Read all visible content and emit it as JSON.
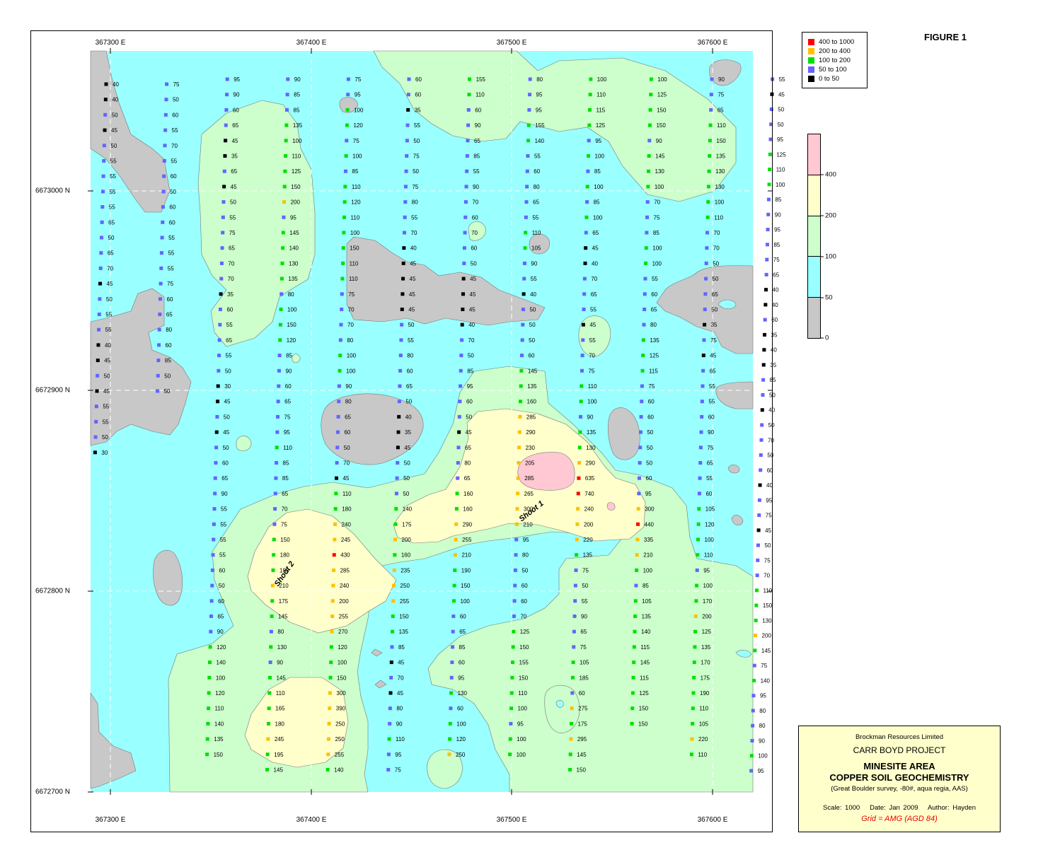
{
  "figure_label": "FIGURE 1",
  "axes": {
    "x_labels": [
      {
        "value": 367300,
        "text": "367300 E"
      },
      {
        "value": 367400,
        "text": "367400 E"
      },
      {
        "value": 367500,
        "text": "367500 E"
      },
      {
        "value": 367600,
        "text": "367600 E"
      }
    ],
    "y_labels": [
      {
        "value": 6673000,
        "text": "6673000 N"
      },
      {
        "value": 6672900,
        "text": "6672900 N"
      },
      {
        "value": 6672800,
        "text": "6672800 N"
      },
      {
        "value": 6672700,
        "text": "6672700 N"
      }
    ]
  },
  "legend": {
    "entries": [
      {
        "label": "400  to  1000",
        "color": "#ff0000"
      },
      {
        "label": "200  to  400",
        "color": "#ffc000"
      },
      {
        "label": "100  to  200",
        "color": "#00e000"
      },
      {
        "label": "50  to  100",
        "color": "#6464ff"
      },
      {
        "label": "0  to  50",
        "color": "#000000"
      }
    ]
  },
  "color_scale": {
    "bands": [
      {
        "from": 400,
        "color": "#ffc8d2"
      },
      {
        "from": 200,
        "color": "#ffffcc"
      },
      {
        "from": 100,
        "color": "#ccffcc"
      },
      {
        "from": 50,
        "color": "#99ffff"
      },
      {
        "from": 0,
        "color": "#c8c8c8"
      }
    ],
    "ticks": [
      "400",
      "200",
      "100",
      "50",
      "0"
    ]
  },
  "title_block": {
    "company": "Brockman Resources Limited",
    "project": "CARR BOYD PROJECT",
    "area": "MINESITE AREA",
    "subject": "COPPER SOIL GEOCHEMISTRY",
    "survey": "(Great Boulder survey, -80#, aqua regia, AAS)",
    "scale": "Scale: 1000",
    "date": "Date: Jan 2009",
    "author": "Author: Hayden",
    "grid": "Grid = AMG (AGD 84)"
  },
  "map_labels": {
    "shoot1": "Shoot 1",
    "shoot2": "Shoot 2"
  },
  "sample_lines": [
    [
      40,
      40,
      50,
      45,
      50,
      55,
      55,
      55,
      55,
      65,
      50,
      65,
      70,
      45,
      50,
      55,
      55,
      40,
      45,
      50,
      45,
      55,
      55,
      50,
      30
    ],
    [
      75,
      50,
      60,
      55,
      70,
      55,
      60,
      50,
      60,
      60,
      55,
      55,
      55,
      75,
      60,
      65,
      80,
      60,
      85,
      50,
      50
    ],
    [
      95,
      90,
      60,
      65,
      45,
      35,
      65,
      45,
      50,
      55,
      75,
      65,
      70,
      70,
      35,
      60,
      55,
      65,
      55,
      50,
      30,
      45,
      50,
      45,
      50,
      60,
      65,
      90,
      55,
      55,
      55,
      55,
      60,
      50,
      60,
      65,
      90,
      120,
      140,
      100,
      120,
      110,
      140,
      135,
      150
    ],
    [
      90,
      85,
      85,
      135,
      100,
      110,
      125,
      150,
      200,
      95,
      145,
      140,
      130,
      135,
      80,
      100,
      150,
      120,
      85,
      90,
      60,
      65,
      75,
      95,
      110,
      85,
      85,
      65,
      70,
      75,
      150,
      180,
      185,
      210,
      175,
      145,
      80,
      130,
      90,
      145,
      110,
      165,
      180,
      245,
      195,
      145
    ],
    [
      75,
      95,
      100,
      120,
      75,
      100,
      85,
      110,
      120,
      110,
      100,
      150,
      110,
      110,
      75,
      70,
      70,
      80,
      100,
      100,
      90,
      80,
      65,
      60,
      50,
      70,
      45,
      110,
      180,
      240,
      245,
      430,
      285,
      240,
      200,
      255,
      270,
      120,
      100,
      150,
      300,
      390,
      250,
      250,
      255,
      140
    ],
    [
      60,
      60,
      35,
      55,
      50,
      75,
      50,
      75,
      80,
      55,
      70,
      40,
      45,
      45,
      45,
      45,
      50,
      55,
      80,
      60,
      65,
      50,
      40,
      35,
      45,
      50,
      50,
      50,
      140,
      175,
      200,
      160,
      235,
      250,
      255,
      150,
      135,
      85,
      45,
      70,
      45,
      80,
      90,
      110,
      95,
      75
    ],
    [
      155,
      110,
      60,
      90,
      65,
      85,
      55,
      90,
      70,
      60,
      70,
      60,
      50,
      45,
      45,
      45,
      40,
      70,
      50,
      85,
      95,
      60,
      50,
      45,
      65,
      80,
      65,
      160,
      160,
      290,
      255,
      210,
      190,
      150,
      100,
      60,
      65,
      85,
      60,
      95,
      130,
      60,
      100,
      120,
      250
    ],
    [
      80,
      95,
      95,
      155,
      140,
      55,
      60,
      80,
      65,
      55,
      110,
      105,
      90,
      55,
      40,
      50,
      50,
      50,
      60,
      145,
      135,
      160,
      285,
      290,
      230,
      205,
      285,
      265,
      300,
      210,
      95,
      80,
      50,
      60,
      60,
      70,
      125,
      150,
      155,
      150,
      110,
      100,
      95,
      100,
      100
    ],
    [
      100,
      110,
      115,
      125,
      95,
      100,
      85,
      100,
      85,
      100,
      65,
      45,
      40,
      70,
      65,
      55,
      45,
      55,
      70,
      75,
      110,
      100,
      90,
      135,
      130,
      290,
      635,
      740,
      240,
      200,
      220,
      135,
      75,
      50,
      55,
      90,
      65,
      75,
      105,
      185,
      60,
      275,
      175,
      295,
      145,
      150
    ],
    [
      100,
      125,
      150,
      150,
      90,
      145,
      130,
      100,
      70,
      75,
      85,
      100,
      100,
      55,
      60,
      65,
      80,
      135,
      125,
      115,
      75,
      60,
      60,
      50,
      50,
      50,
      60,
      95,
      300,
      440,
      335,
      210,
      100,
      85,
      105,
      135,
      140,
      115,
      145,
      115,
      125,
      150,
      150
    ],
    [
      90,
      75,
      65,
      110,
      150,
      135,
      130,
      130,
      100,
      110,
      70,
      70,
      50,
      50,
      65,
      50,
      35,
      75,
      45,
      65,
      55,
      55,
      60,
      90,
      75,
      65,
      55,
      60,
      105,
      120,
      100,
      110,
      95,
      100,
      170,
      200,
      125,
      135,
      170,
      175,
      190,
      110,
      105,
      220,
      110
    ],
    [
      55,
      45,
      50,
      50,
      95,
      125,
      110,
      100,
      85,
      90,
      95,
      85,
      75,
      65,
      40,
      40,
      60,
      35,
      40,
      35,
      85,
      50,
      40,
      50,
      70,
      50,
      60,
      40,
      95,
      75,
      45,
      50,
      75,
      70,
      110,
      150,
      130,
      200,
      145,
      75,
      140,
      95,
      80,
      80,
      90,
      100,
      95
    ]
  ]
}
